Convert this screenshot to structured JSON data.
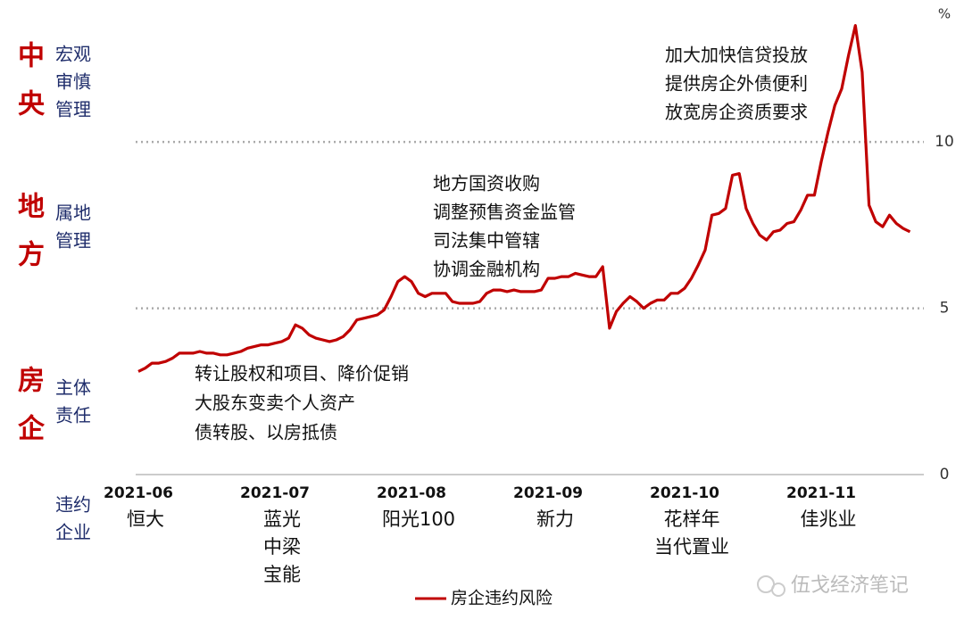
{
  "chart_data": {
    "type": "line",
    "unit": "%",
    "categories": [
      "2021-06",
      null,
      null,
      null,
      null,
      null,
      null,
      null,
      null,
      null,
      null,
      null,
      null,
      null,
      null,
      null,
      null,
      null,
      null,
      null,
      "2021-07",
      null,
      null,
      null,
      null,
      null,
      null,
      null,
      null,
      null,
      null,
      null,
      null,
      null,
      null,
      null,
      null,
      null,
      null,
      null,
      "2021-08",
      null,
      null,
      null,
      null,
      null,
      null,
      null,
      null,
      null,
      null,
      null,
      null,
      null,
      null,
      null,
      null,
      null,
      null,
      null,
      "2021-09",
      null,
      null,
      null,
      null,
      null,
      null,
      null,
      null,
      null,
      null,
      null,
      null,
      null,
      null,
      null,
      null,
      null,
      null,
      null,
      "2021-10",
      null,
      null,
      null,
      null,
      null,
      null,
      null,
      null,
      null,
      null,
      null,
      null,
      null,
      null,
      null,
      null,
      null,
      null,
      null,
      "2021-11",
      null,
      null,
      null,
      null,
      null,
      null,
      null,
      null,
      null,
      null,
      null,
      null,
      null
    ],
    "series": [
      {
        "name": "房企违约风险",
        "color": "#c00000",
        "values": [
          3.1,
          3.2,
          3.35,
          3.35,
          3.4,
          3.5,
          3.65,
          3.65,
          3.65,
          3.7,
          3.65,
          3.65,
          3.6,
          3.6,
          3.65,
          3.7,
          3.8,
          3.85,
          3.9,
          3.9,
          3.95,
          4.0,
          4.1,
          4.5,
          4.4,
          4.2,
          4.1,
          4.05,
          4.0,
          4.05,
          4.15,
          4.35,
          4.65,
          4.7,
          4.75,
          4.8,
          4.95,
          5.35,
          5.8,
          5.95,
          5.8,
          5.45,
          5.35,
          5.45,
          5.45,
          5.45,
          5.2,
          5.15,
          5.15,
          5.15,
          5.2,
          5.45,
          5.55,
          5.55,
          5.5,
          5.55,
          5.5,
          5.5,
          5.5,
          5.55,
          5.9,
          5.9,
          5.95,
          5.95,
          6.05,
          6.0,
          5.95,
          5.95,
          6.25,
          4.4,
          4.9,
          5.15,
          5.35,
          5.2,
          5.0,
          5.15,
          5.25,
          5.25,
          5.45,
          5.45,
          5.6,
          5.9,
          6.3,
          6.75,
          7.8,
          7.85,
          8.0,
          9.0,
          9.05,
          8.0,
          7.55,
          7.2,
          7.05,
          7.3,
          7.35,
          7.55,
          7.6,
          7.95,
          8.4,
          8.4,
          9.4,
          10.3,
          11.1,
          11.6,
          12.6,
          13.5,
          12.1,
          8.1,
          7.6,
          7.45,
          7.8,
          7.55,
          7.4,
          7.3
        ]
      }
    ],
    "ylim": [
      0,
      14
    ],
    "yticks": [
      0,
      5,
      10
    ],
    "grid": true,
    "defaults_label": [
      "违约",
      "企业"
    ],
    "defaults": [
      [
        "恒大"
      ],
      [
        "蓝光",
        "中梁",
        "宝能"
      ],
      [
        "阳光100"
      ],
      [
        "新力"
      ],
      [
        "花样年",
        "当代置业"
      ],
      [
        "佳兆业"
      ]
    ],
    "levels": [
      {
        "title": "中央",
        "subtitle": [
          "宏观",
          "审慎",
          "管理"
        ]
      },
      {
        "title": "地方",
        "subtitle": [
          "属地",
          "管理"
        ]
      },
      {
        "title": "房企",
        "subtitle": [
          "主体",
          "责任"
        ]
      }
    ],
    "annotations": [
      [
        "转让股权和项目、降价促销",
        "大股东变卖个人资产",
        "债转股、以房抵债"
      ],
      [
        "地方国资收购",
        "调整预售资金监管",
        "司法集中管辖",
        "协调金融机构"
      ],
      [
        "加大加快信贷投放",
        "提供房企外债便利",
        "放宽房企资质要求"
      ]
    ],
    "watermark": "伍戈经济笔记"
  }
}
